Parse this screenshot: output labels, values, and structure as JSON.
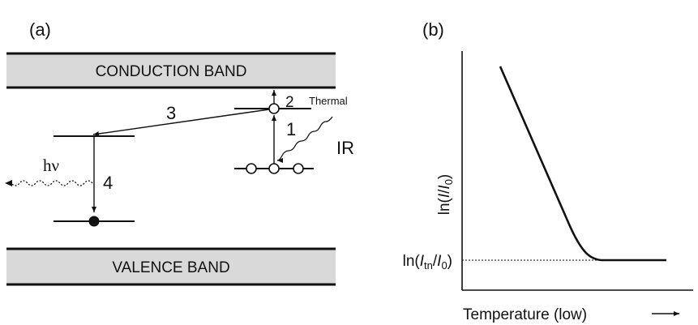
{
  "panel_a": {
    "label": "(a)",
    "conduction_band": "CONDUCTION BAND",
    "valence_band": "VALENCE BAND",
    "step_1": "1",
    "step_2": "2",
    "step_3": "3",
    "step_4": "4",
    "thermal": "Thermal",
    "ir": "IR",
    "photon": "hν"
  },
  "panel_b": {
    "label": "(b)",
    "y_axis_label": {
      "pre": "ln(",
      "i": "I",
      "slash": "/",
      "i0": "I",
      "sub0": "0",
      "post": ")"
    },
    "y_tick_label": {
      "pre": "ln(",
      "i": "I",
      "sub_tn": "tn",
      "slash": "/",
      "i0": "I",
      "sub0": "0",
      "post": ")"
    },
    "x_axis_label": "Temperature (low)"
  },
  "colors": {
    "band_fill": "#d9d9d9",
    "ink": "#111111"
  }
}
